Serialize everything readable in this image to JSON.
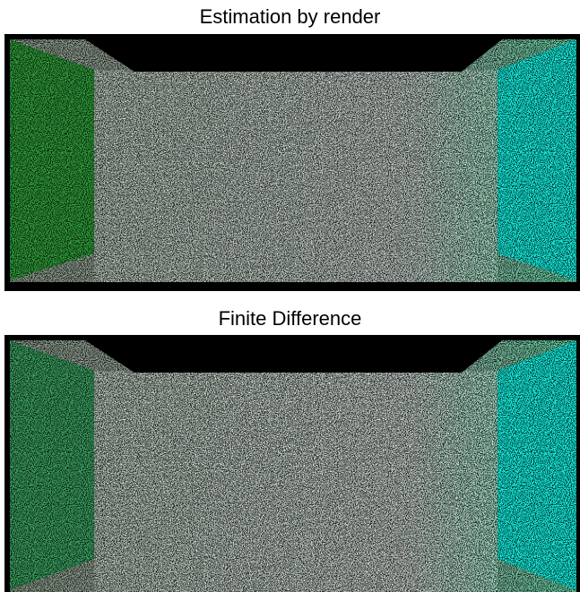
{
  "panels": [
    {
      "title": "Estimation by render"
    },
    {
      "title": "Finite Difference"
    }
  ]
}
